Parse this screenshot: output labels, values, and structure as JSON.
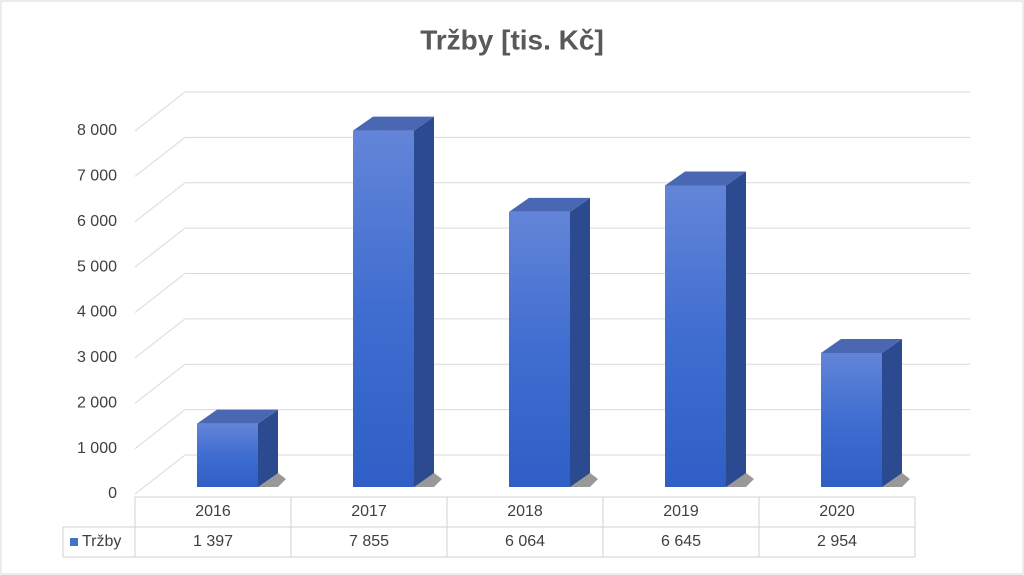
{
  "chart_data": {
    "type": "bar3d",
    "title": "Tržby [tis. Kč]",
    "categories": [
      "2016",
      "2017",
      "2018",
      "2019",
      "2020"
    ],
    "series": [
      {
        "name": "Tržby",
        "color": "#4472c4",
        "values": [
          1397,
          7855,
          6064,
          6645,
          2954
        ],
        "value_labels": [
          "1 397",
          "7 855",
          "6 064",
          "6 645",
          "2 954"
        ]
      }
    ],
    "ylim": [
      0,
      8000
    ],
    "yticks": [
      0,
      {
        "value": 1000,
        "label": "1 000"
      },
      {
        "value": 2000,
        "label": "2 000"
      },
      {
        "value": 3000,
        "label": "3 000"
      },
      {
        "value": 4000,
        "label": "4 000"
      },
      {
        "value": 5000,
        "label": "5 000"
      },
      {
        "value": 6000,
        "label": "6 000"
      },
      {
        "value": 7000,
        "label": "7 000"
      },
      {
        "value": 8000,
        "label": "8 000"
      }
    ],
    "grid": true
  }
}
